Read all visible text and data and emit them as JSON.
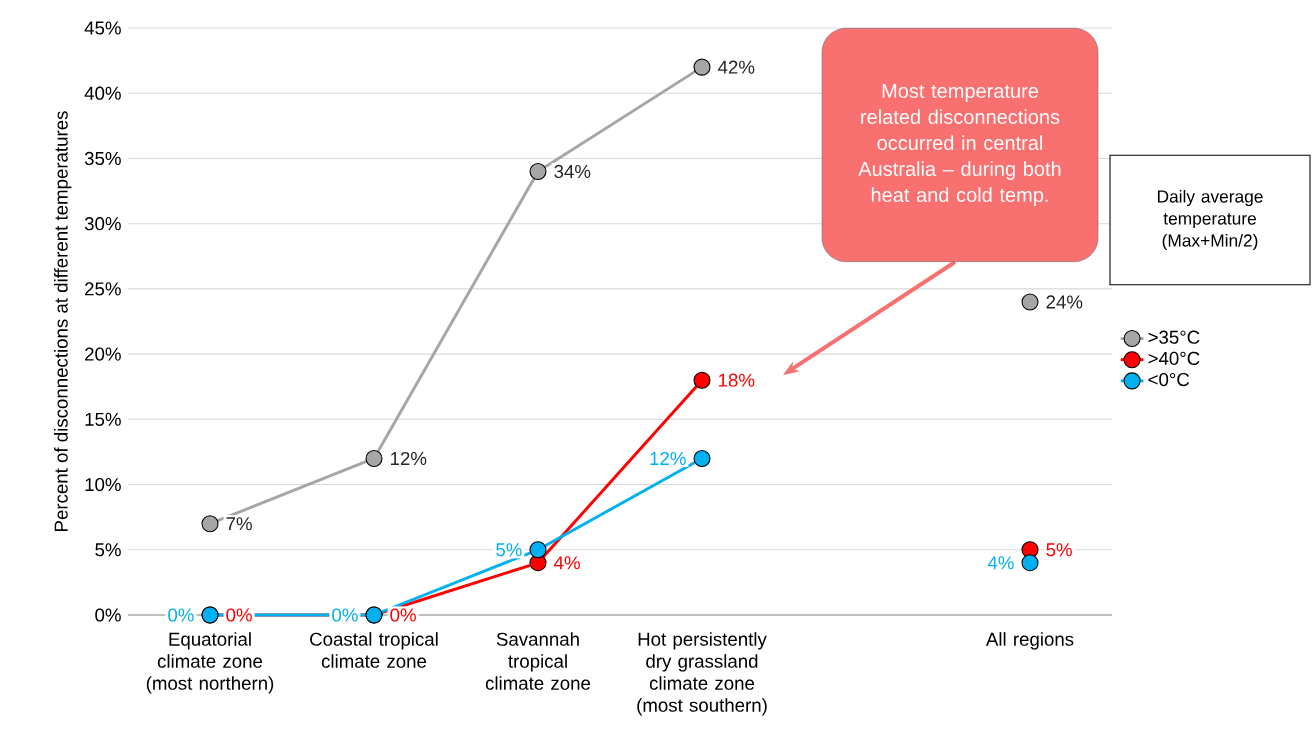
{
  "chart_data": {
    "type": "line",
    "ylabel": "Percent of disconnections at different temperatures",
    "categories": [
      "Equatorial climate zone (most northern)",
      "Coastal tropical climate zone",
      "Savannah tropical climate zone",
      "Hot persistently dry grassland climate zone (most southern)",
      null,
      "All regions"
    ],
    "series": [
      {
        "name": ">35°C",
        "color": "#a6a6a6",
        "values": [
          7,
          12,
          34,
          42,
          null,
          24
        ],
        "value_labels": [
          "7%",
          "12%",
          "34%",
          "42%",
          null,
          "24%"
        ]
      },
      {
        "name": ">40°C",
        "color": "#ff0000",
        "values": [
          0,
          0,
          4,
          18,
          null,
          5
        ],
        "value_labels": [
          "0%",
          "0%",
          "4%",
          "18%",
          null,
          "5%"
        ]
      },
      {
        "name": "<0°C",
        "color": "#00b0f0",
        "values": [
          0,
          0,
          5,
          12,
          null,
          4
        ],
        "value_labels": [
          "0%",
          "0%",
          "5%",
          "12%",
          null,
          "4%"
        ]
      }
    ],
    "ylim": [
      0,
      45
    ],
    "yticks": [
      {
        "value": 0,
        "label": "0%"
      },
      {
        "value": 5,
        "label": "5%"
      },
      {
        "value": 10,
        "label": "10%"
      },
      {
        "value": 15,
        "label": "15%"
      },
      {
        "value": 20,
        "label": "20%"
      },
      {
        "value": 25,
        "label": "25%"
      },
      {
        "value": 30,
        "label": "30%"
      },
      {
        "value": 35,
        "label": "35%"
      },
      {
        "value": 40,
        "label": "40%"
      },
      {
        "value": 45,
        "label": "45%"
      }
    ],
    "grid": "y",
    "legend": "right",
    "legend_title": "Daily average temperature (Max+Min/2)",
    "marker": "circle",
    "line_style": "solid",
    "annotations": [
      "Most temperature related disconnections occurred in central Australia – during both heat and cold temp."
    ]
  }
}
